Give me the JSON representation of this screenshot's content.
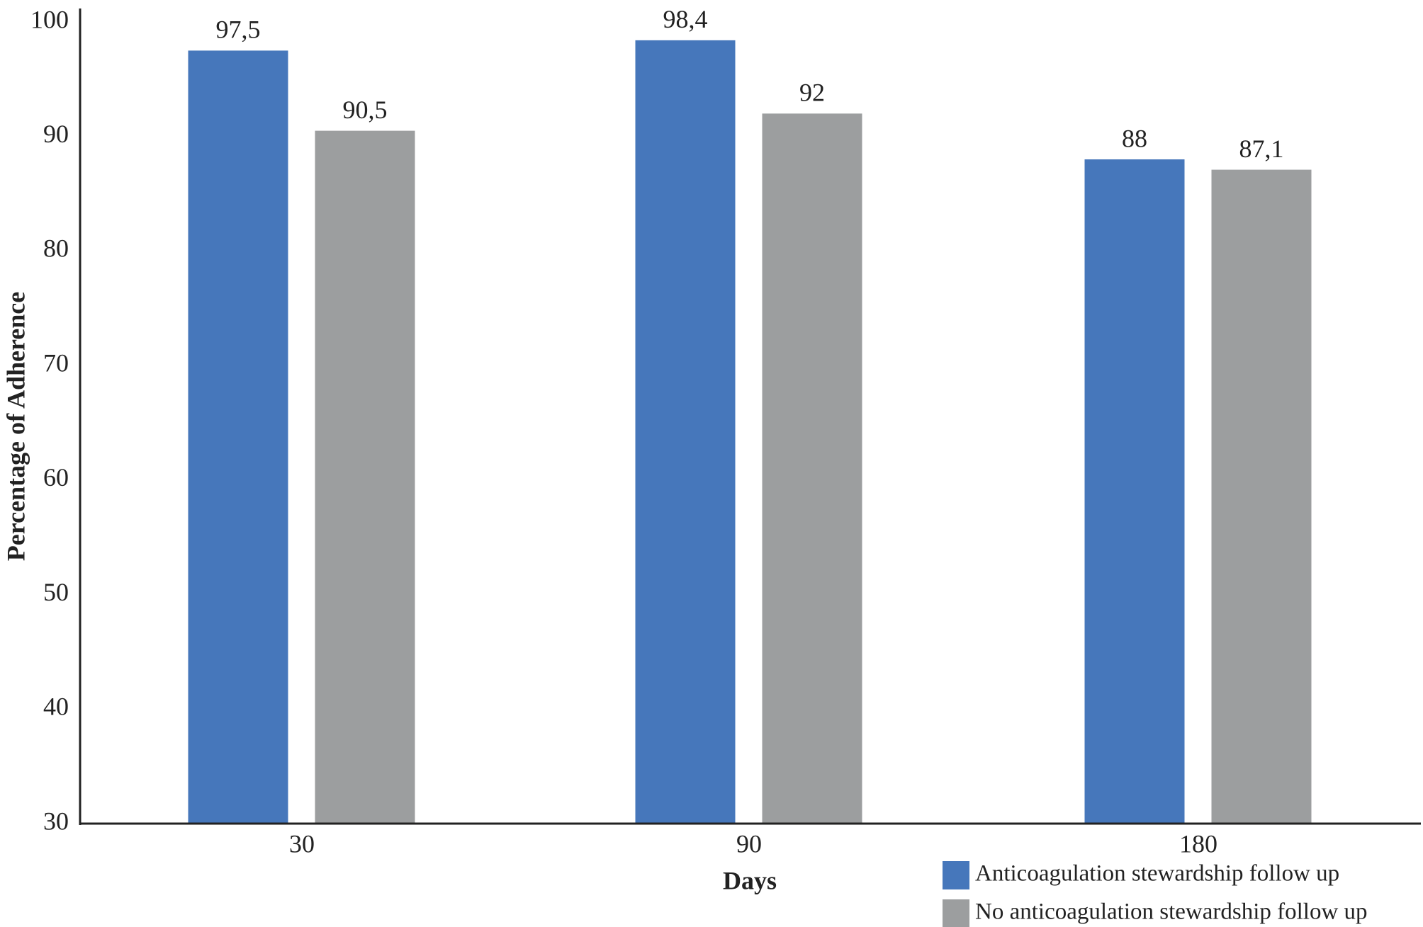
{
  "chart_data": {
    "type": "bar",
    "x_label": "Days",
    "y_label": "Percentage of Adherence",
    "categories": [
      "30",
      "90",
      "180"
    ],
    "series": [
      {
        "name": "Anticoagulation stewardship follow up",
        "color": "#4677bb",
        "values": [
          97.5,
          98.4,
          88
        ],
        "value_labels": [
          "97,5",
          "98,4",
          "88"
        ]
      },
      {
        "name": "No anticoagulation stewardship follow up",
        "color": "#9c9e9f",
        "values": [
          90.5,
          92,
          87.1
        ],
        "value_labels": [
          "90,5",
          "92",
          "87,1"
        ]
      }
    ],
    "ylim": [
      30,
      100
    ],
    "yticks": [
      30,
      40,
      50,
      60,
      70,
      80,
      90,
      100
    ],
    "legend": "bottom-right",
    "grid": false
  }
}
